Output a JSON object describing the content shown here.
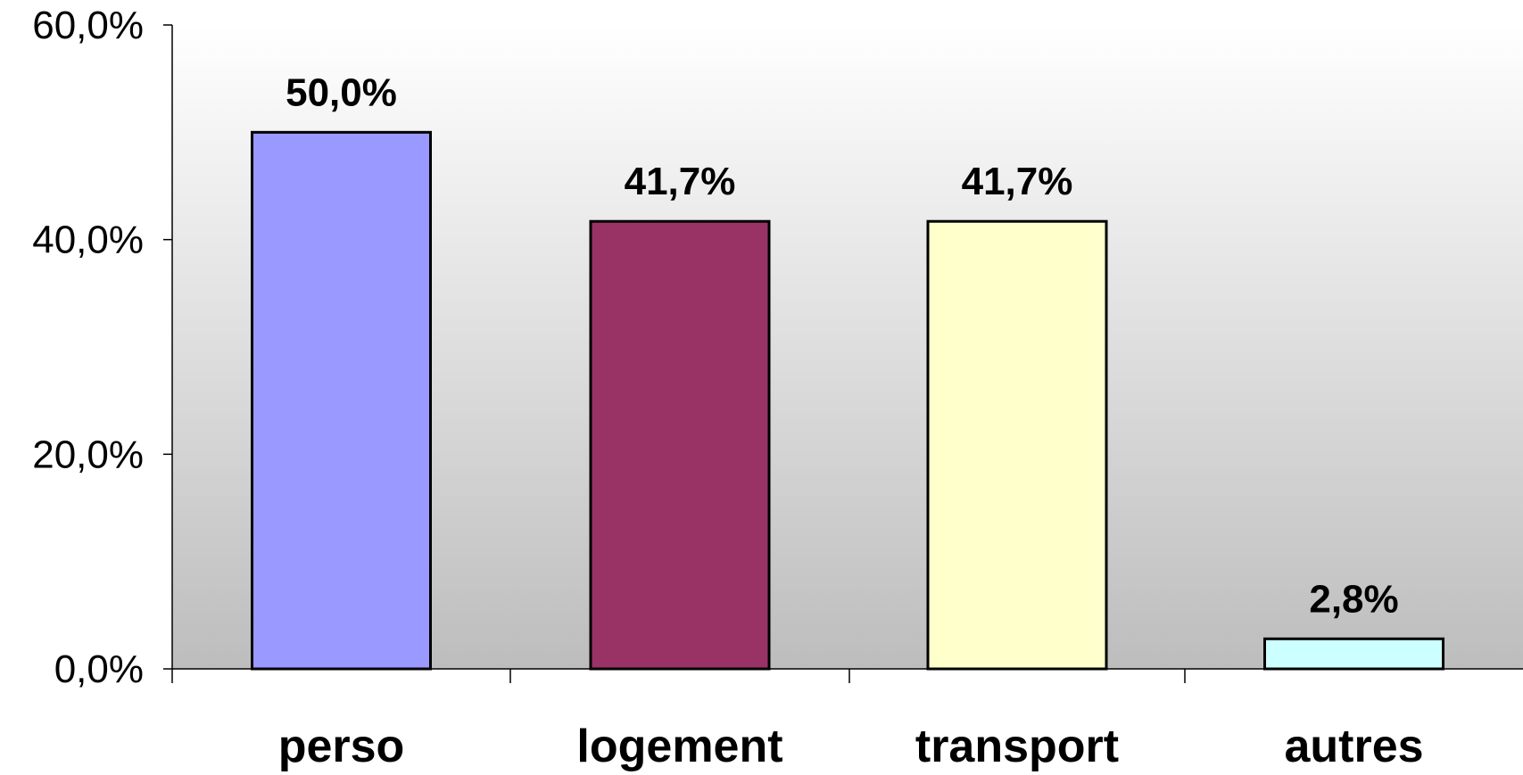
{
  "chart_data": {
    "type": "bar",
    "categories": [
      "perso",
      "logement",
      "transport",
      "autres"
    ],
    "values": [
      50.0,
      41.7,
      41.7,
      2.8
    ],
    "data_labels": [
      "50,0%",
      "41,7%",
      "41,7%",
      "2,8%"
    ],
    "bar_colors": [
      "#9999ff",
      "#993366",
      "#ffffcc",
      "#ccffff"
    ],
    "title": "",
    "xlabel": "",
    "ylabel": "",
    "ylim": [
      0,
      60
    ],
    "yticks": [
      0,
      20,
      40,
      60
    ],
    "ytick_labels": [
      "0,0%",
      "20,0%",
      "40,0%",
      "60,0%"
    ],
    "grid": false,
    "legend": "none",
    "plot_background": "gradient white to grey"
  }
}
